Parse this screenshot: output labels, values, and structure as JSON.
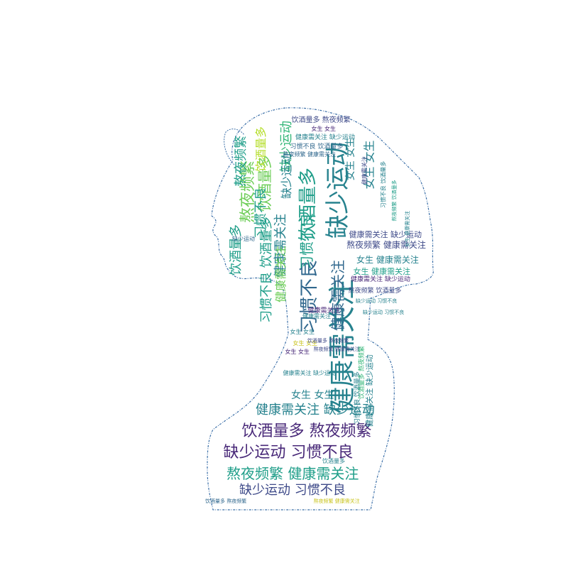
{
  "palette": {
    "outline": "#3b6fa8",
    "dark_purple": "#482878",
    "indigo": "#3e4a89",
    "blue": "#31688e",
    "teal": "#26828e",
    "sea": "#1f9e89",
    "green": "#35b779",
    "lime": "#6ece58",
    "yellow": "#b5de2b",
    "gold": "#c9c41e"
  },
  "cloud": {
    "words": [
      {
        "text": "缺少运动",
        "color": "teal"
      },
      {
        "text": "健康需关注",
        "color": "teal"
      },
      {
        "text": "饮酒量多",
        "color": "sea"
      },
      {
        "text": "习惯不良",
        "color": "blue"
      },
      {
        "text": "熬夜频繁",
        "color": "lime"
      },
      {
        "text": "缺少运动",
        "color": "green"
      },
      {
        "text": "饮酒量多",
        "color": "lime"
      },
      {
        "text": "女生 女生",
        "color": "teal"
      },
      {
        "text": "健康需关注 缺少运动",
        "color": "indigo"
      },
      {
        "text": "熬夜频繁 健康需关注",
        "color": "indigo"
      },
      {
        "text": "女生 健康需关注",
        "color": "teal"
      },
      {
        "text": "女生 健康需关注",
        "color": "sea"
      },
      {
        "text": "饮酒量多 熬夜频繁",
        "color": "dark_purple"
      },
      {
        "text": "缺少运动 习惯不良",
        "color": "dark_purple"
      },
      {
        "text": "熬夜频繁 健康需关注",
        "color": "sea"
      },
      {
        "text": "缺少运动 习惯不良",
        "color": "indigo"
      },
      {
        "text": "女生 女生",
        "color": "teal"
      },
      {
        "text": "健康需关注 缺少运动",
        "color": "teal"
      },
      {
        "text": "习惯不良 饮酒量多",
        "color": "sea"
      },
      {
        "text": "饮酒量多 熬夜频繁",
        "color": "indigo"
      },
      {
        "text": "熬夜频繁",
        "color": "sea"
      },
      {
        "text": "饮酒量多",
        "color": "sea"
      },
      {
        "text": "习惯不良",
        "color": "sea"
      },
      {
        "text": "健康需关注",
        "color": "teal"
      },
      {
        "text": "健康需关注",
        "color": "lime"
      },
      {
        "text": "饮酒量多",
        "color": "yellow"
      },
      {
        "text": "缺少运动",
        "color": "teal"
      },
      {
        "text": "习惯不良",
        "color": "sea"
      },
      {
        "text": "女生 女生",
        "color": "teal"
      },
      {
        "text": "健康需关注",
        "color": "blue"
      },
      {
        "text": "健康需关注 缺少运动",
        "color": "dark_purple"
      },
      {
        "text": "熬夜频繁 饮酒量多",
        "color": "indigo"
      },
      {
        "text": "缺少运动 习惯不良",
        "color": "teal"
      },
      {
        "text": "女生 女生",
        "color": "dark_purple"
      },
      {
        "text": "健康需关注 缺少运动",
        "color": "teal"
      },
      {
        "text": "习惯不良 饮酒量多",
        "color": "blue"
      },
      {
        "text": "熬夜频繁 健康需关注",
        "color": "blue"
      },
      {
        "text": "缺少运动 习惯不良",
        "color": "teal"
      },
      {
        "text": "女生 女生",
        "color": "gold"
      },
      {
        "text": "健康需关注",
        "color": "dark_purple"
      },
      {
        "text": "熬夜频繁 健康需关注",
        "color": "indigo"
      },
      {
        "text": "饮酒量多 熬夜频繁",
        "color": "indigo"
      },
      {
        "text": "健康需关注 缺少运动",
        "color": "teal"
      },
      {
        "text": "女生 女生",
        "color": "dark_purple"
      },
      {
        "text": "饮酒量多 熬夜频繁",
        "color": "green"
      },
      {
        "text": "健康需关注",
        "color": "indigo"
      },
      {
        "text": "健康需关注 缺少运动",
        "color": "teal"
      },
      {
        "text": "习惯不良 饮酒量多",
        "color": "teal"
      },
      {
        "text": "熬夜频繁 健康需关注",
        "color": "gold"
      },
      {
        "text": "饮酒量多 熬夜频繁",
        "color": "blue"
      },
      {
        "text": "女生 健康需关注",
        "color": "teal"
      },
      {
        "text": "缺少运动",
        "color": "blue"
      },
      {
        "text": "健康需关注",
        "color": "teal"
      },
      {
        "text": "饮酒量多",
        "color": "teal"
      },
      {
        "text": "习惯不良 饮酒量多",
        "color": "teal"
      },
      {
        "text": "熬夜频繁 饮酒量多",
        "color": "sea"
      },
      {
        "text": "女生 女生",
        "color": "teal"
      }
    ]
  }
}
